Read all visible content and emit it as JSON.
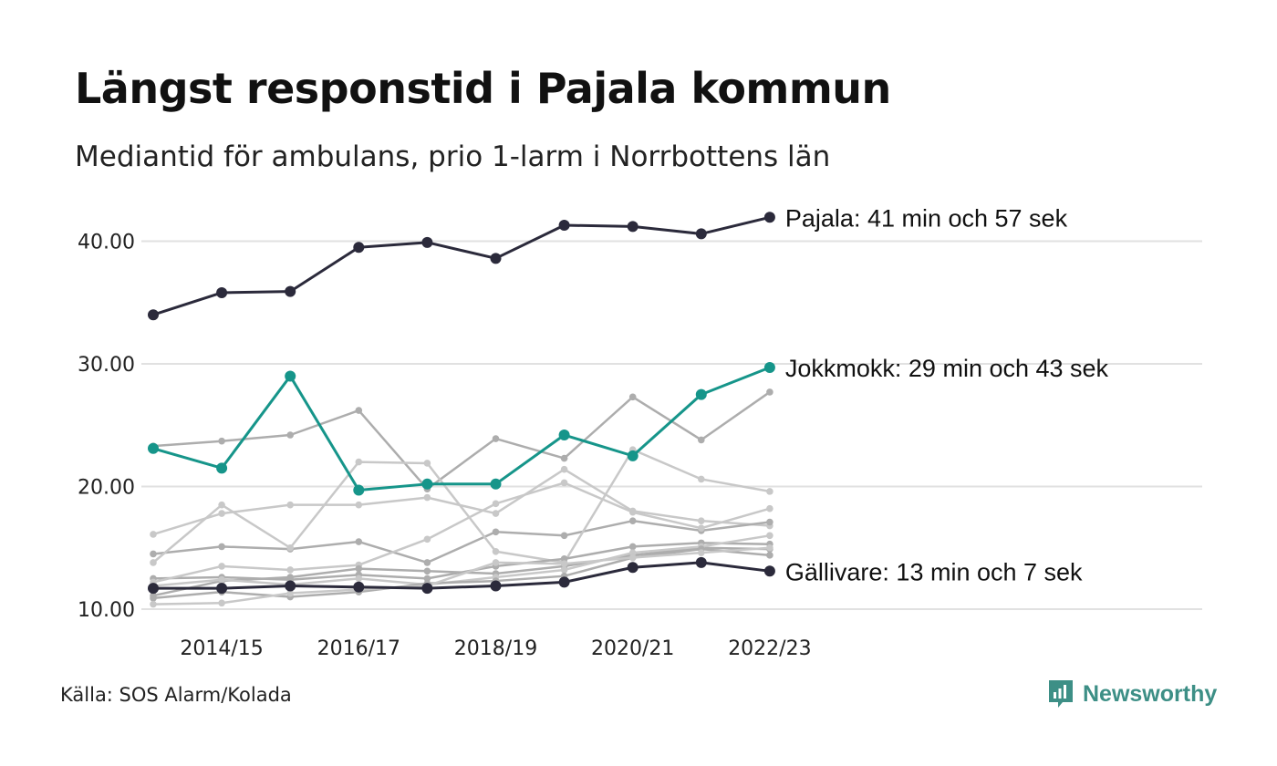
{
  "title": "Längst responstid i Pajala kommun",
  "subtitle": "Mediantid för ambulans, prio 1-larm i Norrbottens län",
  "source": "Källa: SOS Alarm/Kolada",
  "brand": {
    "name": "Newsworthy",
    "icon": "newsworthy-logo-icon",
    "color": "#3d8f86"
  },
  "chart_data": {
    "type": "line",
    "x": [
      "2013/14",
      "2014/15",
      "2015/16",
      "2016/17",
      "2017/18",
      "2018/19",
      "2019/20",
      "2020/21",
      "2021/22",
      "2022/23"
    ],
    "x_tick_labels": [
      "2014/15",
      "2016/17",
      "2018/19",
      "2020/21",
      "2022/23"
    ],
    "y_tick_labels": [
      "10.00",
      "20.00",
      "30.00",
      "40.00"
    ],
    "ylim": [
      10,
      42
    ],
    "grid": true,
    "highlighted": [
      {
        "name": "Pajala",
        "label": "Pajala: 41 min och 57 sek",
        "color": "#2b2a3b",
        "values": [
          34.0,
          35.8,
          35.9,
          39.5,
          39.9,
          38.6,
          41.3,
          41.2,
          40.6,
          41.95
        ]
      },
      {
        "name": "Jokkmokk",
        "label": "Jokkmokk: 29 min och 43 sek",
        "color": "#16958a",
        "values": [
          23.1,
          21.5,
          29.0,
          19.7,
          20.2,
          20.2,
          24.2,
          22.5,
          27.5,
          29.7
        ]
      },
      {
        "name": "Gällivare",
        "label": "Gällivare: 13 min och 7 sek",
        "color": "#2b2a3b",
        "values": [
          11.7,
          11.7,
          11.9,
          11.8,
          11.7,
          11.9,
          12.2,
          13.4,
          13.8,
          13.1
        ]
      }
    ],
    "background_series_colors": [
      "#adadad",
      "#c8c8c8"
    ],
    "background": [
      [
        23.3,
        23.7,
        24.2,
        26.2,
        19.8,
        23.9,
        22.3,
        27.3,
        23.8,
        27.7
      ],
      [
        16.1,
        17.8,
        18.5,
        18.5,
        19.1,
        17.8,
        21.4,
        18.0,
        17.2,
        16.8
      ],
      [
        14.5,
        15.1,
        14.9,
        15.5,
        13.8,
        16.3,
        16.0,
        17.2,
        16.4,
        17.1
      ],
      [
        13.8,
        18.5,
        15.0,
        22.0,
        21.9,
        14.7,
        13.8,
        23.0,
        20.6,
        19.6
      ],
      [
        12.5,
        12.6,
        12.4,
        12.8,
        12.5,
        13.5,
        14.1,
        15.1,
        15.4,
        15.3
      ],
      [
        12.2,
        13.5,
        13.2,
        13.6,
        15.7,
        18.6,
        20.3,
        17.9,
        16.6,
        18.2
      ],
      [
        11.1,
        12.3,
        12.6,
        13.3,
        13.1,
        12.9,
        13.5,
        14.4,
        15.0,
        14.9
      ],
      [
        11.9,
        12.4,
        12.0,
        12.5,
        12.0,
        12.6,
        13.2,
        14.6,
        15.1,
        16.0
      ],
      [
        10.9,
        11.4,
        11.0,
        11.4,
        12.1,
        12.3,
        12.7,
        14.2,
        14.9,
        14.4
      ],
      [
        10.4,
        10.5,
        11.3,
        11.6,
        11.9,
        13.8,
        13.7,
        14.2,
        14.6,
        15.0
      ]
    ]
  }
}
